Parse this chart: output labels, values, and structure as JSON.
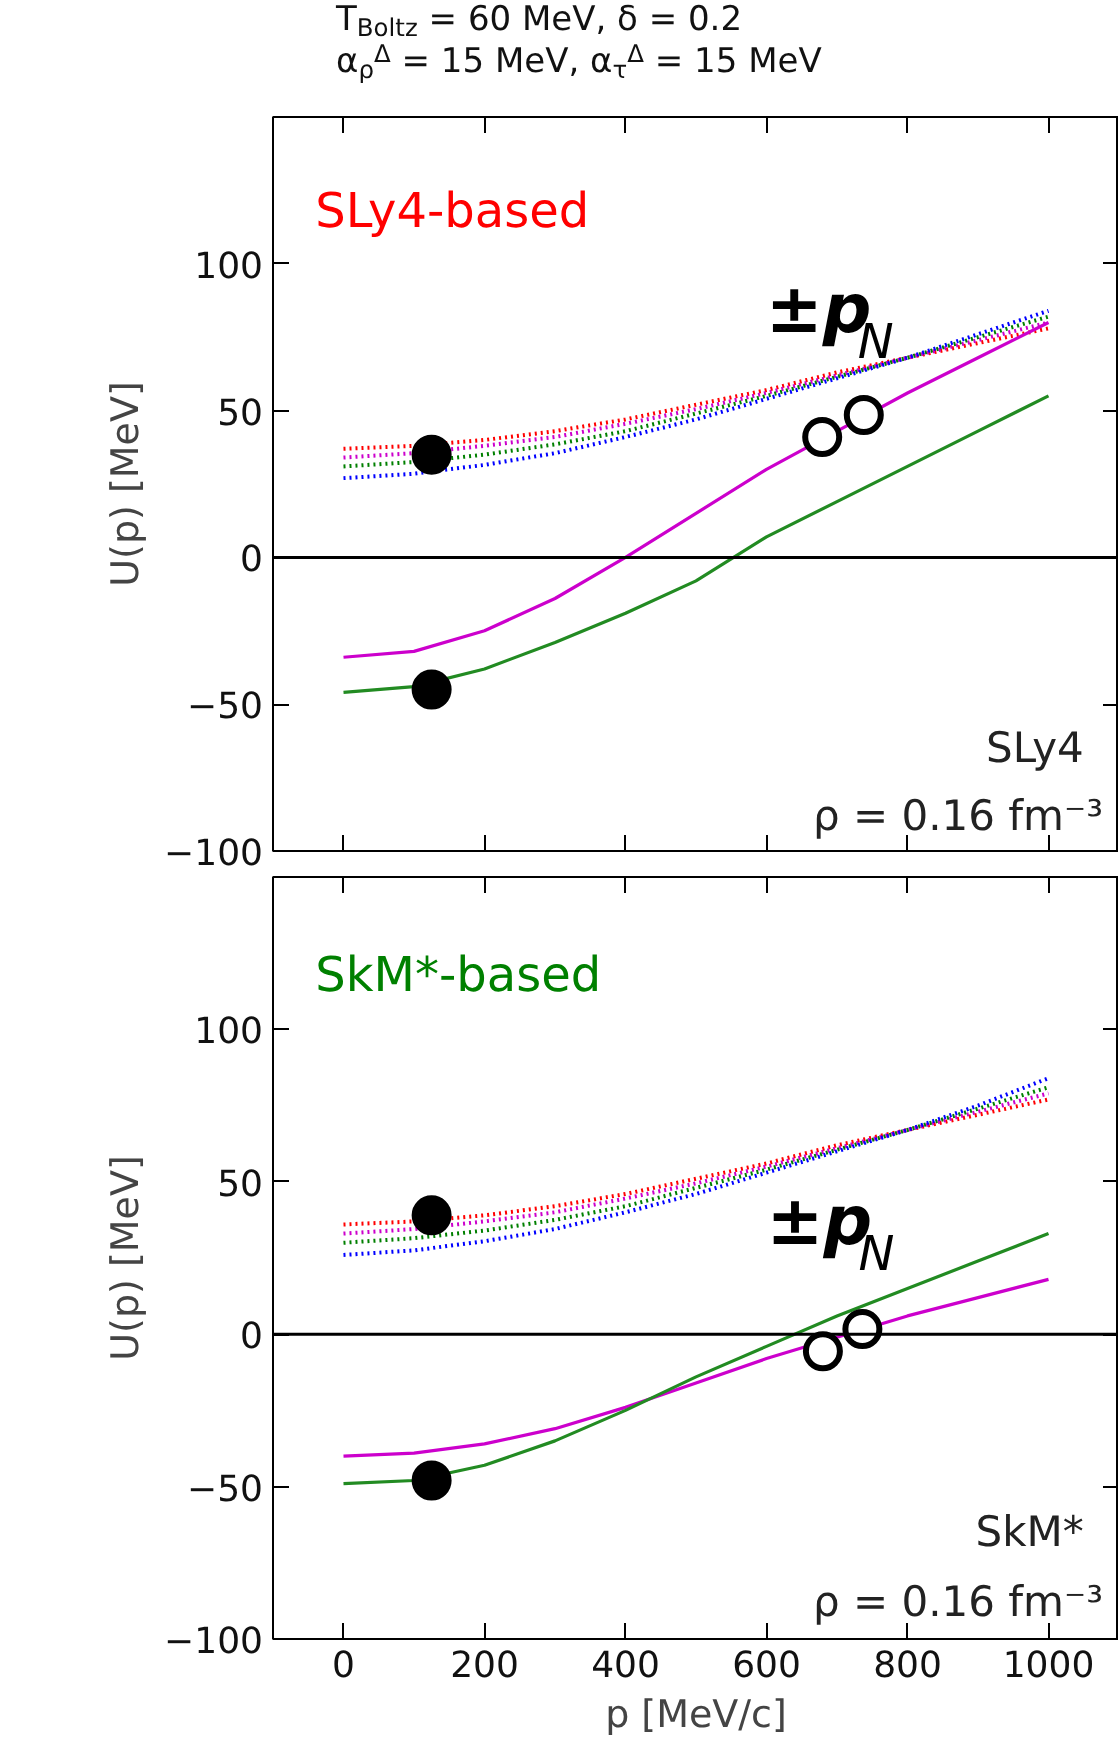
{
  "chart_data": [
    {
      "type": "line",
      "title": "T$_{Boltz}$ = 60 MeV,  δ = 0.2",
      "subtitle": "α$_{ρ}$$^{Δ}$ = 15 MeV,  α$_{τ}$$^{Δ}$ = 15 MeV",
      "ylabel": "U(p) [MeV]",
      "x": [
        0,
        100,
        200,
        300,
        400,
        500,
        600,
        700,
        800,
        900,
        1000
      ],
      "series": [
        {
          "color": "#ff0000",
          "line_style": "dotted",
          "values": [
            37,
            38,
            40,
            43,
            47,
            52,
            57,
            63,
            68,
            73,
            78
          ]
        },
        {
          "color": "#cc00cc",
          "line_style": "dotted",
          "values": [
            34,
            35.5,
            38,
            41,
            45.5,
            50.5,
            56,
            62,
            68,
            74,
            80
          ]
        },
        {
          "color": "#008000",
          "line_style": "dotted",
          "values": [
            31,
            32.5,
            35,
            38.5,
            43,
            49,
            55,
            61.5,
            68,
            75,
            82
          ]
        },
        {
          "color": "#0000ff",
          "line_style": "dotted",
          "values": [
            27,
            28.5,
            31.5,
            35.5,
            41,
            47,
            54,
            61,
            68,
            76,
            84
          ]
        },
        {
          "color": "#cc00cc",
          "line_style": "solid",
          "values": [
            -34,
            -32,
            -25,
            -14,
            0,
            15,
            30,
            43,
            56,
            68,
            80
          ]
        },
        {
          "color": "#228b22",
          "line_style": "solid",
          "values": [
            -46,
            -44,
            -38,
            -29,
            -19,
            -8,
            7,
            19,
            31,
            43,
            55
          ]
        },
        {
          "type": "scatter",
          "marker": "circle",
          "color": "#000000",
          "x": [
            125,
            125
          ],
          "values": [
            35,
            -45
          ]
        },
        {
          "type": "scatter",
          "marker": "circle",
          "color": "#ffffff",
          "x": [
            679,
            738
          ],
          "values": [
            41,
            48.5
          ]
        }
      ],
      "annotations": [
        "SLy4-based",
        "±p$_{N}$",
        "SLy4",
        "ρ = 0.16 fm⁻³"
      ],
      "ref_lines": [
        {
          "axis": "y",
          "value": 0,
          "color": "#000000"
        }
      ],
      "xlim": [
        -100,
        1100
      ],
      "ylim": [
        -100,
        150
      ],
      "xticks": [
        0,
        200,
        400,
        600,
        800,
        1000
      ],
      "yticks": [
        -100,
        -50,
        0,
        50,
        100
      ],
      "tick_labels": "y",
      "grid": false
    },
    {
      "type": "line",
      "xlabel": "p [MeV/c]",
      "ylabel": "U(p) [MeV]",
      "x": [
        0,
        100,
        200,
        300,
        400,
        500,
        600,
        700,
        800,
        900,
        1000
      ],
      "series": [
        {
          "color": "#ff0000",
          "line_style": "dotted",
          "values": [
            36,
            37,
            39,
            42,
            46,
            51,
            56,
            62,
            67,
            72,
            77
          ]
        },
        {
          "color": "#cc00cc",
          "line_style": "dotted",
          "values": [
            33,
            34.5,
            37,
            40,
            44.5,
            49.5,
            55,
            61,
            67,
            73,
            79
          ]
        },
        {
          "color": "#008000",
          "line_style": "dotted",
          "values": [
            30,
            31.5,
            34,
            37.5,
            42,
            48,
            54,
            60.5,
            67,
            74,
            81
          ]
        },
        {
          "color": "#0000ff",
          "line_style": "dotted",
          "values": [
            26,
            27.5,
            30.5,
            34.5,
            40,
            46,
            53,
            60,
            67,
            75,
            84
          ]
        },
        {
          "color": "#cc00cc",
          "line_style": "solid",
          "values": [
            -40,
            -39,
            -36,
            -31,
            -24,
            -16,
            -8,
            -1,
            6,
            12,
            18
          ]
        },
        {
          "color": "#228b22",
          "line_style": "solid",
          "values": [
            -49,
            -48,
            -43,
            -35,
            -25,
            -14,
            -4,
            6,
            15,
            24,
            33
          ]
        },
        {
          "type": "scatter",
          "marker": "circle",
          "color": "#000000",
          "x": [
            125,
            125
          ],
          "values": [
            39,
            -48
          ]
        },
        {
          "type": "scatter",
          "marker": "circle",
          "color": "#ffffff",
          "x": [
            680,
            736
          ],
          "values": [
            -5.6,
            1.7
          ]
        }
      ],
      "annotations": [
        "SkM*-based",
        "±p$_{N}$",
        "SkM*",
        "ρ = 0.16 fm⁻³"
      ],
      "ref_lines": [
        {
          "axis": "y",
          "value": 0,
          "color": "#000000"
        }
      ],
      "xlim": [
        -100,
        1100
      ],
      "ylim": [
        -100,
        150
      ],
      "xticks": [
        0,
        200,
        400,
        600,
        800,
        1000
      ],
      "yticks": [
        -100,
        -50,
        0,
        50,
        100
      ],
      "grid": false
    }
  ]
}
